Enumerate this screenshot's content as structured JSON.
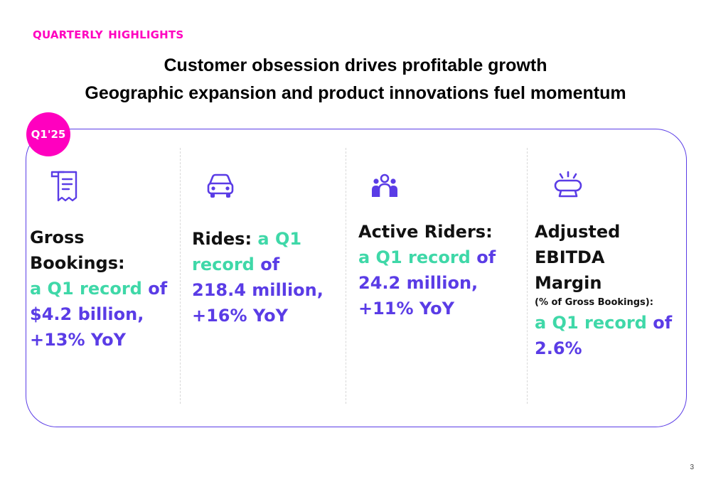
{
  "kicker": "QUARTERLY  HIGHLIGHTS",
  "headline": {
    "line1": "Customer obsession drives profitable growth",
    "line2": "Geographic expansion and product innovations fuel momentum"
  },
  "badge": "Q1'25",
  "accent_colors": {
    "magenta": "#ff00bf",
    "purple": "#5a3ce6",
    "teal": "#3fd8a8"
  },
  "metrics": [
    {
      "icon": "receipt-icon",
      "title": "Gross Bookings:",
      "highlight": "a Q1 record",
      "rest": " of $4.2 billion, +13% YoY"
    },
    {
      "icon": "car-icon",
      "title": "Rides:",
      "highlight": "a Q1 record",
      "rest": " of 218.4 million, +16% YoY"
    },
    {
      "icon": "people-icon",
      "title": "Active Riders:",
      "highlight": "a Q1 record",
      "rest": " of 24.2 million, +11% YoY"
    },
    {
      "icon": "lamp-icon",
      "title": "Adjusted EBITDA Margin",
      "note": "(% of Gross Bookings):",
      "highlight": "a Q1 record",
      "rest": " of 2.6%"
    }
  ],
  "page_number": "3"
}
